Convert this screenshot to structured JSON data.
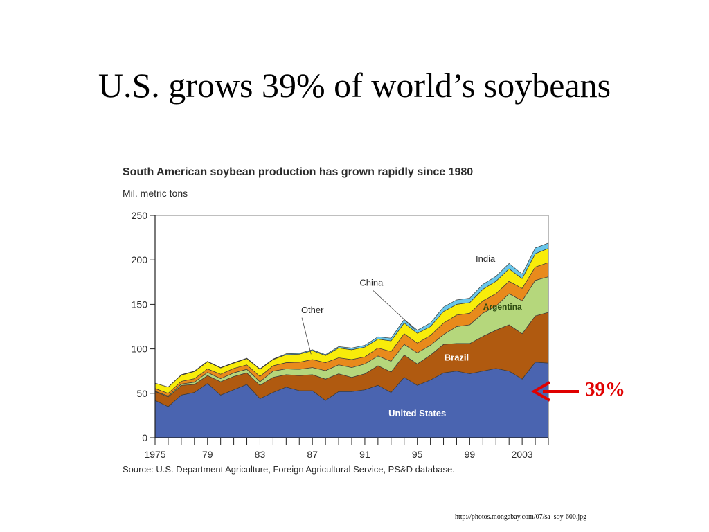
{
  "slide": {
    "title": "U.S. grows 39% of world’s soybeans",
    "callout": "39%",
    "credit": "http://photos.mongabay.com/07/sa_soy-600.jpg"
  },
  "chart_data": {
    "type": "area",
    "stacked": true,
    "title": "South American soybean production has grown rapidly since 1980",
    "ylabel": "Mil. metric tons",
    "source": "Source: U.S. Department Agriculture, Foreign Agricultural Service, PS&D database.",
    "ylim": [
      0,
      250
    ],
    "xlim": [
      1975,
      2005
    ],
    "yticks": [
      0,
      50,
      100,
      150,
      200,
      250
    ],
    "xticks": [
      1975,
      1979,
      1983,
      1987,
      1991,
      1995,
      1999,
      2003
    ],
    "xtick_labels": [
      "1975",
      "79",
      "83",
      "87",
      "91",
      "95",
      "99",
      "2003"
    ],
    "grid": false,
    "x": [
      1975,
      1976,
      1977,
      1978,
      1979,
      1980,
      1981,
      1982,
      1983,
      1984,
      1985,
      1986,
      1987,
      1988,
      1989,
      1990,
      1991,
      1992,
      1993,
      1994,
      1995,
      1996,
      1997,
      1998,
      1999,
      2000,
      2001,
      2002,
      2003,
      2004,
      2005
    ],
    "series": [
      {
        "name": "United States",
        "color": "#4a64b0",
        "label_color": "#ffffff",
        "values": [
          42,
          35,
          48,
          51,
          61,
          48,
          54,
          60,
          44,
          51,
          57,
          53,
          53,
          42,
          52,
          52,
          54,
          59,
          51,
          68,
          59,
          65,
          73,
          75,
          72,
          75,
          78,
          75,
          66,
          85,
          84
        ]
      },
      {
        "name": "Brazil",
        "color": "#b05a10",
        "label_color": "#ffffff",
        "values": [
          10,
          11,
          11,
          9,
          9,
          15,
          15,
          13,
          15,
          17,
          14,
          17,
          18,
          24,
          20,
          16,
          18,
          22,
          23,
          25,
          24,
          28,
          32,
          31,
          34,
          39,
          43,
          52,
          51,
          52,
          57
        ]
      },
      {
        "name": "Argentina",
        "color": "#b5d77c",
        "label_color": "#2b4a10",
        "values": [
          0.5,
          1,
          1.5,
          2.5,
          3.5,
          3.5,
          4,
          4,
          4,
          7,
          6.5,
          7,
          8,
          9.5,
          10,
          11,
          11,
          11,
          12,
          12,
          12.5,
          11,
          11,
          19,
          21,
          26,
          27,
          35,
          37,
          40,
          40
        ]
      },
      {
        "name": "China",
        "color": "#e88a1c",
        "label_color": "#2b2b2b",
        "values": [
          3,
          3,
          3,
          4,
          4,
          5,
          5,
          5,
          6,
          6,
          7,
          8,
          9,
          9,
          8,
          9,
          8,
          9,
          11,
          12,
          11,
          11,
          13,
          13,
          13,
          14,
          14,
          14,
          14,
          15,
          16
        ]
      },
      {
        "name": "Other",
        "color": "#f8ec0a",
        "label_color": "#2b2b2b",
        "values": [
          6,
          7,
          7,
          8,
          8,
          7,
          6,
          7,
          8,
          7,
          9,
          9,
          10,
          8,
          11,
          11,
          11,
          10,
          12,
          12,
          11,
          10,
          13,
          12,
          12,
          13,
          14,
          14,
          11,
          15,
          16
        ]
      },
      {
        "name": "India",
        "color": "#69c6ea",
        "label_color": "#2b2b2b",
        "values": [
          0,
          0,
          0.5,
          0.5,
          0.5,
          0.5,
          0.5,
          0.5,
          0.5,
          0.5,
          1,
          1,
          1,
          1,
          1.5,
          2,
          2,
          2.5,
          3,
          4,
          3.5,
          4,
          5,
          5,
          5,
          5.5,
          5.5,
          6,
          5,
          6.5,
          6
        ]
      }
    ]
  }
}
